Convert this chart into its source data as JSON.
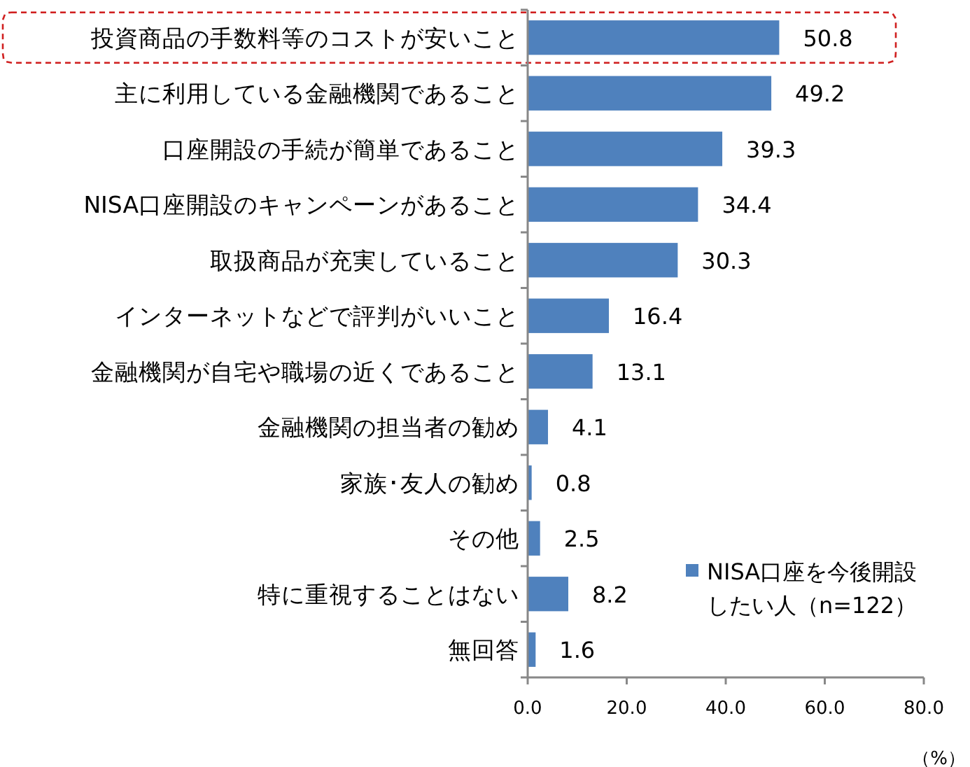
{
  "chart_data": {
    "type": "bar",
    "orientation": "horizontal",
    "categories": [
      "投資商品の手数料等のコストが安いこと",
      "主に利用している金融機関であること",
      "口座開設の手続が簡単であること",
      "NISA口座開設のキャンペーンがあること",
      "取扱商品が充実していること",
      "インターネットなどで評判がいいこと",
      "金融機関が自宅や職場の近くであること",
      "金融機関の担当者の勧め",
      "家族･友人の勧め",
      "その他",
      "特に重視することはない",
      "無回答"
    ],
    "series": [
      {
        "name": "NISA口座を今後開設したい人（n=122）",
        "color": "#4f81bd",
        "values": [
          50.8,
          49.2,
          39.3,
          34.4,
          30.3,
          16.4,
          13.1,
          4.1,
          0.8,
          2.5,
          8.2,
          1.6
        ]
      }
    ],
    "xlim": [
      0,
      80
    ],
    "xticks": [
      {
        "value": 0,
        "label": "0.0"
      },
      {
        "value": 20,
        "label": "20.0"
      },
      {
        "value": 40,
        "label": "40.0"
      },
      {
        "value": 60,
        "label": "60.0"
      },
      {
        "value": 80,
        "label": "80.0"
      }
    ],
    "xlabel": "（%）",
    "data_labels": true,
    "legend": "bottom right",
    "grid": false
  }
}
